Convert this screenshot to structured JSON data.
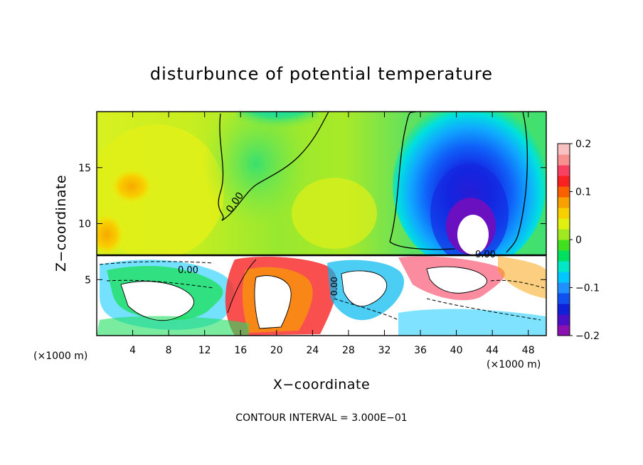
{
  "chart_data": {
    "type": "heatmap",
    "title": "disturbunce of potential temperature",
    "xlabel": "X−coordinate",
    "ylabel": "Z−coordinate",
    "x_unit_label": "(×1000 m)",
    "x_unit_label_right": "(×1000 m)",
    "xlim": [
      0,
      50
    ],
    "ylim": [
      0,
      20
    ],
    "xticks": [
      4,
      8,
      12,
      16,
      20,
      24,
      28,
      32,
      36,
      40,
      44,
      48
    ],
    "yticks": [
      5,
      10,
      15
    ],
    "colorbar": {
      "min": -0.2,
      "max": 0.2,
      "ticks": [
        "0.2",
        "0.1",
        "0",
        "−0.1",
        "−0.2"
      ],
      "tick_values": [
        0.2,
        0.1,
        0,
        -0.1,
        -0.2
      ],
      "colors": [
        "#8a10b0",
        "#4a10c8",
        "#1020d8",
        "#1050f0",
        "#2090ff",
        "#00c8ff",
        "#00e8c8",
        "#00e060",
        "#40e020",
        "#a0e820",
        "#e0f010",
        "#f8d000",
        "#f8a000",
        "#f86000",
        "#f82020",
        "#f84060",
        "#f89090",
        "#f8c0c0"
      ]
    },
    "contour_interval_text": "CONTOUR INTERVAL = 3.000E−01",
    "contour_labels": [
      "0.00",
      "0.00",
      "0.00",
      "0.00"
    ],
    "layer_boundary_z": 7.3
  },
  "colors": {
    "background_upper": "#a8ec20",
    "warm_patch": "#f8c800",
    "cold_core": "#1830e0"
  }
}
